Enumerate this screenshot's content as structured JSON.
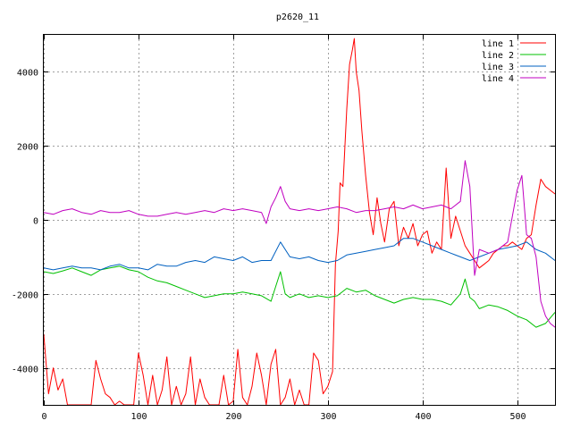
{
  "chart_data": {
    "type": "line",
    "title": "p2620_11",
    "xlabel": "",
    "ylabel": "",
    "xlim": [
      0,
      540
    ],
    "ylim": [
      -5000,
      5000
    ],
    "xticks": [
      0,
      100,
      200,
      300,
      400,
      500
    ],
    "yticks": [
      -4000,
      -2000,
      0,
      2000,
      4000
    ],
    "grid": true,
    "legend_position": "top-right",
    "series": [
      {
        "name": "line 1",
        "color": "#ff0000",
        "x": [
          0,
          5,
          10,
          15,
          20,
          25,
          30,
          35,
          40,
          45,
          50,
          55,
          60,
          65,
          70,
          75,
          80,
          85,
          90,
          95,
          100,
          105,
          110,
          115,
          120,
          125,
          130,
          135,
          140,
          145,
          150,
          155,
          160,
          165,
          170,
          175,
          180,
          185,
          190,
          195,
          200,
          205,
          210,
          215,
          220,
          225,
          230,
          235,
          240,
          245,
          250,
          255,
          260,
          265,
          270,
          275,
          280,
          285,
          290,
          295,
          300,
          305,
          308,
          311,
          313,
          316,
          320,
          323,
          326,
          328,
          330,
          333,
          336,
          340,
          344,
          348,
          352,
          356,
          360,
          365,
          370,
          375,
          380,
          385,
          390,
          395,
          400,
          405,
          410,
          415,
          420,
          425,
          430,
          435,
          440,
          445,
          450,
          455,
          460,
          465,
          470,
          475,
          480,
          485,
          490,
          495,
          500,
          505,
          510,
          515,
          520,
          525,
          530,
          535,
          540
        ],
        "values": [
          -3100,
          -4700,
          -4000,
          -4600,
          -4300,
          -5000,
          -5000,
          -5000,
          -5000,
          -5000,
          -5000,
          -3800,
          -4300,
          -4700,
          -4800,
          -5000,
          -4900,
          -5000,
          -5000,
          -5000,
          -3600,
          -4200,
          -5000,
          -4200,
          -5000,
          -4600,
          -3700,
          -5000,
          -4500,
          -5000,
          -4700,
          -3700,
          -5000,
          -4300,
          -4800,
          -5000,
          -5000,
          -5000,
          -4200,
          -5000,
          -4900,
          -3500,
          -4800,
          -5000,
          -4500,
          -3600,
          -4200,
          -5000,
          -3900,
          -3500,
          -5000,
          -4800,
          -4300,
          -5000,
          -4600,
          -5000,
          -5000,
          -3600,
          -3800,
          -4700,
          -4500,
          -4100,
          -1200,
          -300,
          1000,
          900,
          3000,
          4200,
          4600,
          4900,
          4000,
          3500,
          2400,
          1200,
          200,
          -400,
          600,
          -100,
          -600,
          300,
          500,
          -700,
          -200,
          -500,
          -100,
          -700,
          -400,
          -300,
          -900,
          -600,
          -800,
          1400,
          -500,
          100,
          -300,
          -700,
          -900,
          -1100,
          -1300,
          -1200,
          -1100,
          -900,
          -800,
          -700,
          -700,
          -600,
          -700,
          -800,
          -500,
          -400,
          400,
          1100,
          900,
          800,
          700
        ]
      },
      {
        "name": "line 2",
        "color": "#00c000",
        "x": [
          0,
          10,
          20,
          30,
          40,
          50,
          60,
          70,
          80,
          90,
          100,
          110,
          120,
          130,
          140,
          150,
          160,
          170,
          180,
          190,
          200,
          210,
          220,
          230,
          240,
          245,
          250,
          255,
          260,
          270,
          280,
          290,
          300,
          310,
          320,
          330,
          340,
          350,
          360,
          370,
          380,
          390,
          400,
          410,
          420,
          430,
          440,
          445,
          450,
          455,
          460,
          470,
          480,
          490,
          500,
          510,
          520,
          530,
          540
        ],
        "values": [
          -1400,
          -1450,
          -1380,
          -1300,
          -1400,
          -1500,
          -1350,
          -1300,
          -1250,
          -1350,
          -1400,
          -1550,
          -1650,
          -1700,
          -1800,
          -1900,
          -2000,
          -2100,
          -2050,
          -2000,
          -2000,
          -1950,
          -2000,
          -2050,
          -2200,
          -1800,
          -1400,
          -2000,
          -2100,
          -2000,
          -2100,
          -2050,
          -2100,
          -2050,
          -1850,
          -1950,
          -1900,
          -2050,
          -2150,
          -2250,
          -2150,
          -2100,
          -2150,
          -2150,
          -2200,
          -2300,
          -2000,
          -1600,
          -2100,
          -2200,
          -2400,
          -2300,
          -2350,
          -2450,
          -2600,
          -2700,
          -2900,
          -2800,
          -2500
        ]
      },
      {
        "name": "line 3",
        "color": "#0060c0",
        "x": [
          0,
          10,
          20,
          30,
          40,
          50,
          60,
          70,
          80,
          90,
          100,
          110,
          120,
          130,
          140,
          150,
          160,
          170,
          180,
          190,
          200,
          210,
          220,
          230,
          240,
          250,
          260,
          270,
          280,
          290,
          300,
          310,
          320,
          330,
          340,
          350,
          360,
          370,
          380,
          390,
          400,
          410,
          420,
          430,
          440,
          450,
          460,
          470,
          480,
          490,
          500,
          510,
          520,
          530,
          540
        ],
        "values": [
          -1300,
          -1350,
          -1300,
          -1250,
          -1300,
          -1300,
          -1350,
          -1250,
          -1200,
          -1300,
          -1300,
          -1350,
          -1200,
          -1250,
          -1250,
          -1150,
          -1100,
          -1150,
          -1000,
          -1050,
          -1100,
          -1000,
          -1150,
          -1100,
          -1100,
          -600,
          -1000,
          -1050,
          -1000,
          -1100,
          -1150,
          -1100,
          -950,
          -900,
          -850,
          -800,
          -750,
          -700,
          -500,
          -500,
          -600,
          -700,
          -800,
          -900,
          -1000,
          -1100,
          -1000,
          -900,
          -800,
          -750,
          -700,
          -600,
          -800,
          -900,
          -1100
        ]
      },
      {
        "name": "line 4",
        "color": "#c000c0",
        "x": [
          0,
          10,
          20,
          30,
          40,
          50,
          60,
          70,
          80,
          90,
          100,
          110,
          120,
          130,
          140,
          150,
          160,
          170,
          180,
          190,
          200,
          210,
          220,
          230,
          235,
          240,
          245,
          250,
          255,
          260,
          270,
          280,
          290,
          300,
          310,
          320,
          330,
          340,
          350,
          360,
          370,
          380,
          390,
          400,
          410,
          420,
          430,
          440,
          445,
          450,
          455,
          460,
          470,
          480,
          490,
          500,
          505,
          510,
          515,
          520,
          525,
          530,
          535,
          540
        ],
        "values": [
          200,
          150,
          250,
          300,
          200,
          150,
          250,
          200,
          200,
          250,
          150,
          100,
          100,
          150,
          200,
          150,
          200,
          250,
          200,
          300,
          250,
          300,
          250,
          200,
          -100,
          350,
          600,
          900,
          500,
          300,
          250,
          300,
          250,
          300,
          350,
          300,
          200,
          250,
          250,
          300,
          350,
          300,
          400,
          300,
          350,
          400,
          300,
          500,
          1600,
          900,
          -1500,
          -800,
          -900,
          -800,
          -600,
          800,
          1200,
          -400,
          -500,
          -1000,
          -2200,
          -2600,
          -2800,
          -2900
        ]
      }
    ]
  }
}
